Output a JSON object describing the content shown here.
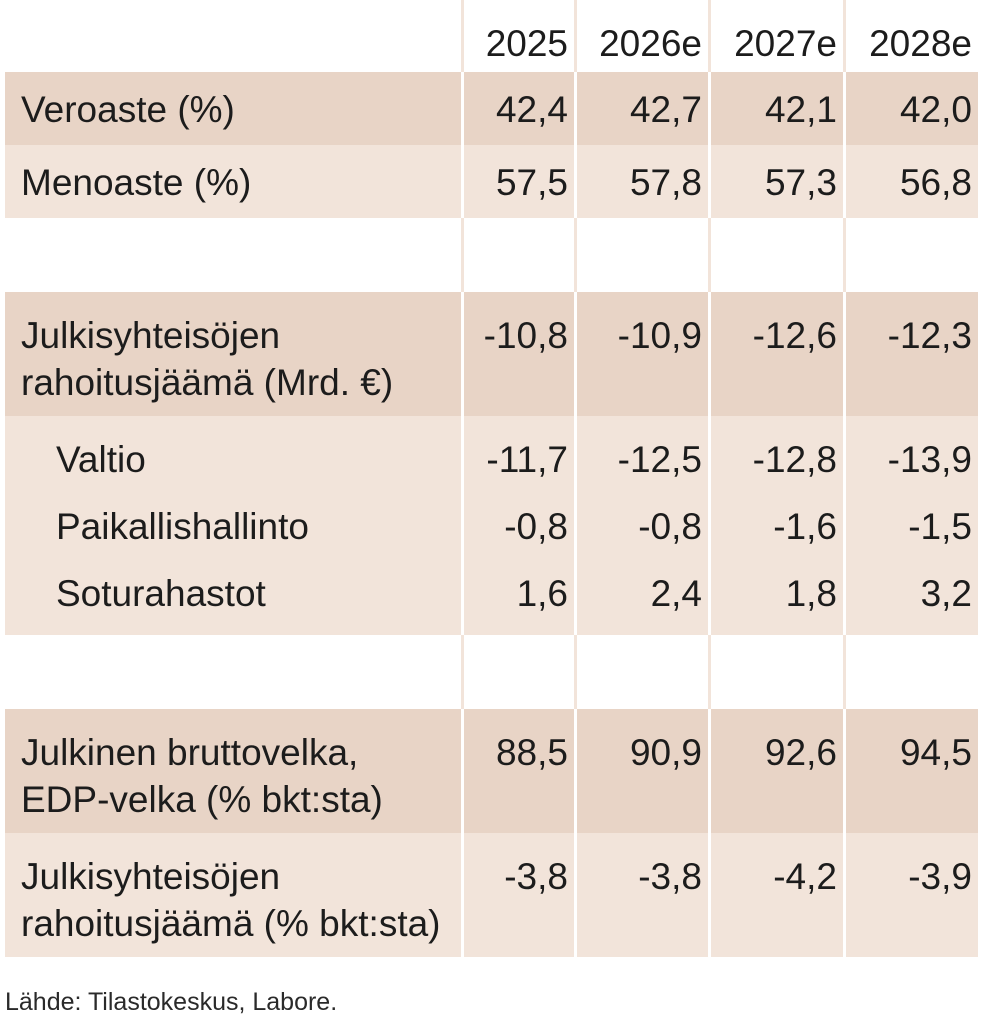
{
  "table": {
    "years": [
      "2025",
      "2026e",
      "2027e",
      "2028e"
    ],
    "rows": [
      {
        "label": "Veroaste (%)",
        "values": [
          "42,4",
          "42,7",
          "42,1",
          "42,0"
        ]
      },
      {
        "label": "Menoaste (%)",
        "values": [
          "57,5",
          "57,8",
          "57,3",
          "56,8"
        ]
      },
      {
        "label": "Julkisyhteisöjen rahoitusjäämä (Mrd. €)",
        "values": [
          "-10,8",
          "-10,9",
          "-12,6",
          "-12,3"
        ]
      },
      {
        "label": "Valtio",
        "values": [
          "-11,7",
          "-12,5",
          "-12,8",
          "-13,9"
        ]
      },
      {
        "label": "Paikallishallinto",
        "values": [
          "-0,8",
          "-0,8",
          "-1,6",
          "-1,5"
        ]
      },
      {
        "label": "Soturahastot",
        "values": [
          "1,6",
          "2,4",
          "1,8",
          "3,2"
        ]
      },
      {
        "label": "Julkinen bruttovelka, EDP-velka (% bkt:sta)",
        "values": [
          "88,5",
          "90,9",
          "92,6",
          "94,5"
        ]
      },
      {
        "label": "Julkisyhteisöjen rahoitusjäämä (% bkt:sta)",
        "values": [
          "-3,8",
          "-3,8",
          "-4,2",
          "-3,9"
        ]
      }
    ]
  },
  "source": "Lähde: Tilastokeskus, Labore.",
  "colors": {
    "row_dark": "#e8d4c6",
    "row_light": "#f2e4da",
    "text": "#1c1c1c"
  }
}
